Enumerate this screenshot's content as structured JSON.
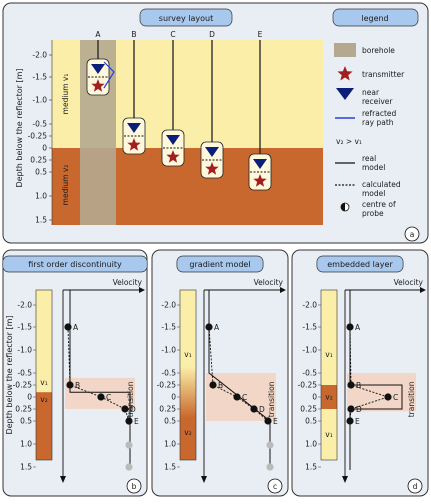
{
  "panel_a": {
    "title": "survey layout",
    "legend_title": "legend",
    "panel_letter": "a",
    "y_axis_label": "Depth below the reflector [m]",
    "y_ticks": [
      "-2.0",
      "-1.5",
      "-1.0",
      "-0.5",
      "-0.25",
      "0",
      "0.25",
      "0.5",
      "1.0",
      "1.5"
    ],
    "medium_1": "medium v₁",
    "medium_2": "medium v₂",
    "boreholes": [
      {
        "label": "A",
        "probe_depth": -1.5
      },
      {
        "label": "B",
        "probe_depth": -0.25
      },
      {
        "label": "C",
        "probe_depth": 0.0
      },
      {
        "label": "D",
        "probe_depth": 0.25
      },
      {
        "label": "E",
        "probe_depth": 0.5
      }
    ],
    "legend": [
      {
        "name": "borehole",
        "label": "borehole"
      },
      {
        "name": "transmitter",
        "label": "transmitter"
      },
      {
        "name": "receiver",
        "label": "near\nreceiver"
      },
      {
        "name": "ray",
        "label": "refracted\nray path"
      },
      {
        "name": "relation",
        "label": "v₂ > v₁"
      },
      {
        "name": "real",
        "label": "real\nmodel"
      },
      {
        "name": "calc",
        "label": "calculated\nmodel"
      },
      {
        "name": "centre",
        "label": "centre of\nprobe"
      }
    ]
  },
  "panels": [
    {
      "title": "first order discontinuity",
      "letter": "b",
      "velocity_label": "Velocity",
      "transition": "transition",
      "v1": "v₁",
      "v2": "v₂",
      "v3": ""
    },
    {
      "title": "gradient model",
      "letter": "c",
      "velocity_label": "Velocity",
      "transition": "transition",
      "v1": "v₁",
      "v2": "v₂",
      "v3": ""
    },
    {
      "title": "embedded layer",
      "letter": "d",
      "velocity_label": "Velocity",
      "transition": "transition",
      "v1": "v₁",
      "v2": "v₂",
      "v3": "v₁"
    }
  ],
  "bottom_y_axis_label": "Depth below the reflector [m]",
  "point_labels": [
    "A",
    "B",
    "C",
    "D",
    "E"
  ],
  "colors": {
    "yellow": "#fbeea8",
    "orange": "#c9682e",
    "beige_bh": "#b5a890",
    "title_box": "#a8c8ee",
    "panel_bg": "#e9eef5",
    "star": "#a31f1f",
    "receiver": "#0b1f7a",
    "ray": "#2a3ed8",
    "shade": "#f3d2c0"
  }
}
